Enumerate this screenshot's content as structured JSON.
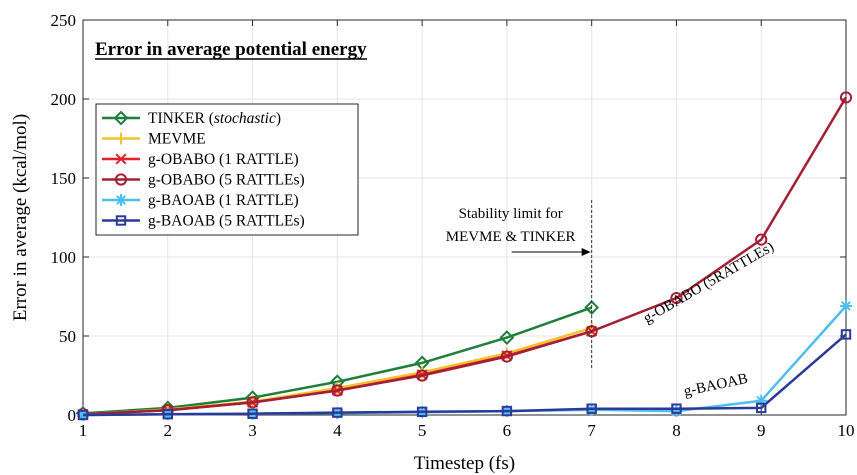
{
  "chart_data": {
    "type": "line",
    "title": "Error in average potential energy",
    "xlabel": "Timestep (fs)",
    "ylabel": "Error in average (kcal/mol)",
    "xlim": [
      1,
      10
    ],
    "ylim": [
      0,
      250
    ],
    "xticks": [
      1,
      2,
      3,
      4,
      5,
      6,
      7,
      8,
      9,
      10
    ],
    "yticks": [
      0,
      50,
      100,
      150,
      200,
      250
    ],
    "grid": true,
    "legend_position": "top-left",
    "series": [
      {
        "name": "TINKER (stochastic)",
        "name_plain": "TINKER (",
        "name_italic": "stochastic",
        "name_close": ")",
        "color": "#1e7f3a",
        "marker": "diamond",
        "x": [
          1,
          2,
          3,
          4,
          5,
          6,
          7
        ],
        "y": [
          1,
          4.5,
          11,
          21,
          33,
          49,
          68
        ]
      },
      {
        "name": "MEVME",
        "color": "#f2c12e",
        "marker": "plus",
        "x": [
          1,
          2,
          3,
          4,
          5,
          6,
          7
        ],
        "y": [
          0.5,
          3.5,
          8.5,
          17,
          27,
          39,
          55
        ]
      },
      {
        "name": "g-OBABO (1 RATTLE)",
        "color": "#e8202a",
        "marker": "x",
        "x": [
          1,
          2,
          3,
          4,
          5,
          6,
          7
        ],
        "y": [
          0.5,
          3,
          8,
          15.5,
          25.5,
          37.5,
          53
        ]
      },
      {
        "name": "g-OBABO (5 RATTLEs)",
        "color": "#a31f34",
        "marker": "circle",
        "x": [
          1,
          2,
          3,
          4,
          5,
          6,
          7,
          8,
          9,
          10
        ],
        "y": [
          0.5,
          3,
          8,
          15.5,
          25,
          37,
          53,
          74,
          111,
          201
        ]
      },
      {
        "name": "g-BAOAB (1 RATTLE)",
        "color": "#4dbeee",
        "marker": "asterisk",
        "x": [
          1,
          2,
          3,
          4,
          5,
          6,
          7,
          8,
          9,
          10
        ],
        "y": [
          0,
          0.5,
          0.8,
          1.2,
          1.8,
          2.5,
          3.3,
          2.5,
          9,
          69
        ]
      },
      {
        "name": "g-BAOAB (5 RATTLEs)",
        "color": "#2b3a99",
        "marker": "square",
        "x": [
          1,
          2,
          3,
          4,
          5,
          6,
          7,
          8,
          9,
          10
        ],
        "y": [
          0,
          0.5,
          0.8,
          1.5,
          2,
          2.5,
          4,
          4,
          4.5,
          51
        ]
      }
    ],
    "annotations": {
      "stability_line1": "Stability limit for",
      "stability_line2": "MEVME & TINKER",
      "stability_x": 7,
      "obabo_label": "g-OBABO (5RATTLEs)",
      "baoab_label": "g-BAOAB"
    }
  }
}
